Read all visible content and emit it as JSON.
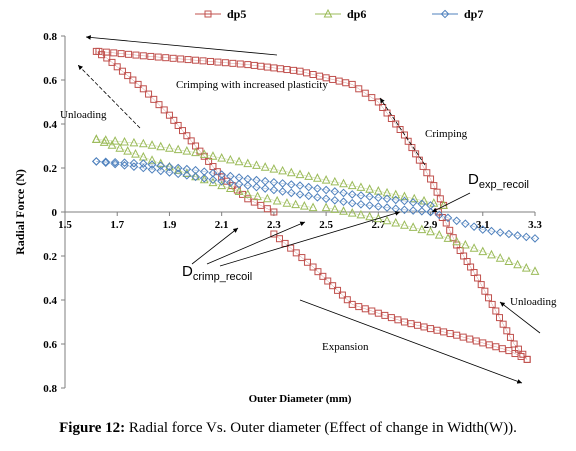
{
  "chart_data": {
    "type": "scatter",
    "xlabel": "Outer Diameter (mm)",
    "ylabel": "Radial Force (N)",
    "xlim": [
      1.5,
      3.3
    ],
    "ylim": [
      -0.8,
      0.8
    ],
    "x_ticks": [
      "1.5",
      "1.7",
      "1.9",
      "2.1",
      "2.3",
      "2.5",
      "2.7",
      "2.9",
      "3.1",
      "3.3"
    ],
    "y_ticks": [
      "0.8",
      "0.6",
      "0.4",
      "0.2",
      "0",
      "0.2",
      "0.4",
      "0.6",
      "0.8"
    ],
    "legend_position": "top",
    "series": [
      {
        "name": "dp5",
        "color": "#c0504d",
        "marker": "square",
        "segments": [
          {
            "phase": "crimping",
            "points": [
              [
                1.63,
                0.73
              ],
              [
                1.8,
                0.71
              ],
              [
                2.0,
                0.69
              ],
              [
                2.2,
                0.67
              ],
              [
                2.4,
                0.64
              ],
              [
                2.6,
                0.58
              ],
              [
                2.7,
                0.5
              ],
              [
                2.8,
                0.35
              ],
              [
                2.9,
                0.15
              ],
              [
                2.95,
                0.03
              ]
            ]
          },
          {
            "phase": "expansion",
            "points": [
              [
                2.3,
                -0.1
              ],
              [
                2.45,
                -0.25
              ],
              [
                2.6,
                -0.42
              ],
              [
                2.8,
                -0.5
              ],
              [
                3.0,
                -0.56
              ],
              [
                3.2,
                -0.63
              ],
              [
                3.27,
                -0.67
              ]
            ]
          },
          {
            "phase": "unloading",
            "points": [
              [
                3.27,
                -0.67
              ],
              [
                3.22,
                -0.6
              ],
              [
                3.15,
                -0.45
              ],
              [
                3.08,
                -0.3
              ],
              [
                3.0,
                -0.15
              ],
              [
                2.96,
                -0.05
              ],
              [
                2.93,
                0.0
              ]
            ]
          },
          {
            "phase": "unloading",
            "points": [
              [
                1.62,
                0.73
              ],
              [
                1.66,
                0.7
              ],
              [
                1.72,
                0.64
              ],
              [
                1.8,
                0.56
              ],
              [
                1.9,
                0.44
              ],
              [
                2.0,
                0.3
              ],
              [
                2.1,
                0.16
              ],
              [
                2.2,
                0.06
              ],
              [
                2.3,
                0.0
              ]
            ]
          }
        ]
      },
      {
        "name": "dp6",
        "color": "#9bbb59",
        "marker": "triangle",
        "segments": [
          {
            "phase": "crimping",
            "points": [
              [
                1.62,
                0.33
              ],
              [
                1.8,
                0.31
              ],
              [
                2.0,
                0.27
              ],
              [
                2.2,
                0.22
              ],
              [
                2.4,
                0.17
              ],
              [
                2.6,
                0.12
              ],
              [
                2.8,
                0.07
              ],
              [
                2.95,
                0.03
              ]
            ]
          },
          {
            "phase": "unloading",
            "points": [
              [
                1.62,
                0.33
              ],
              [
                1.8,
                0.25
              ],
              [
                2.0,
                0.16
              ],
              [
                2.2,
                0.08
              ],
              [
                2.35,
                0.04
              ],
              [
                2.45,
                0.02
              ]
            ]
          },
          {
            "phase": "expansion",
            "points": [
              [
                2.5,
                0.02
              ],
              [
                2.7,
                -0.03
              ],
              [
                2.9,
                -0.09
              ],
              [
                3.1,
                -0.18
              ],
              [
                3.3,
                -0.27
              ]
            ]
          }
        ]
      },
      {
        "name": "dp7",
        "color": "#4f81bd",
        "marker": "diamond",
        "segments": [
          {
            "phase": "crimping",
            "points": [
              [
                1.62,
                0.23
              ],
              [
                1.8,
                0.22
              ],
              [
                2.0,
                0.19
              ],
              [
                2.2,
                0.15
              ],
              [
                2.4,
                0.12
              ],
              [
                2.6,
                0.08
              ],
              [
                2.8,
                0.05
              ],
              [
                2.9,
                0.03
              ]
            ]
          },
          {
            "phase": "unloading",
            "points": [
              [
                1.62,
                0.23
              ],
              [
                1.8,
                0.2
              ],
              [
                2.0,
                0.16
              ],
              [
                2.2,
                0.12
              ],
              [
                2.4,
                0.08
              ],
              [
                2.6,
                0.04
              ],
              [
                2.8,
                0.01
              ],
              [
                2.9,
                0.0
              ]
            ]
          },
          {
            "phase": "expansion",
            "points": [
              [
                2.9,
                0.0
              ],
              [
                3.0,
                -0.04
              ],
              [
                3.1,
                -0.08
              ],
              [
                3.2,
                -0.1
              ],
              [
                3.3,
                -0.12
              ]
            ]
          }
        ]
      }
    ],
    "annotations": {
      "crimping_plasticity": "Crimping with increased plasticity",
      "unloading_left": "Unloading",
      "crimping_right": "Crimping",
      "dexp": "D",
      "dexp_sub": "exp_recoil",
      "dcrimp": "D",
      "dcrimp_sub": "crimp_recoil",
      "unloading_right": "Unloading",
      "expansion": "Expansion"
    }
  },
  "caption": {
    "label": "Figure 12:",
    "text": "Radial force Vs. Outer diameter (Effect of change in Width(W))."
  }
}
